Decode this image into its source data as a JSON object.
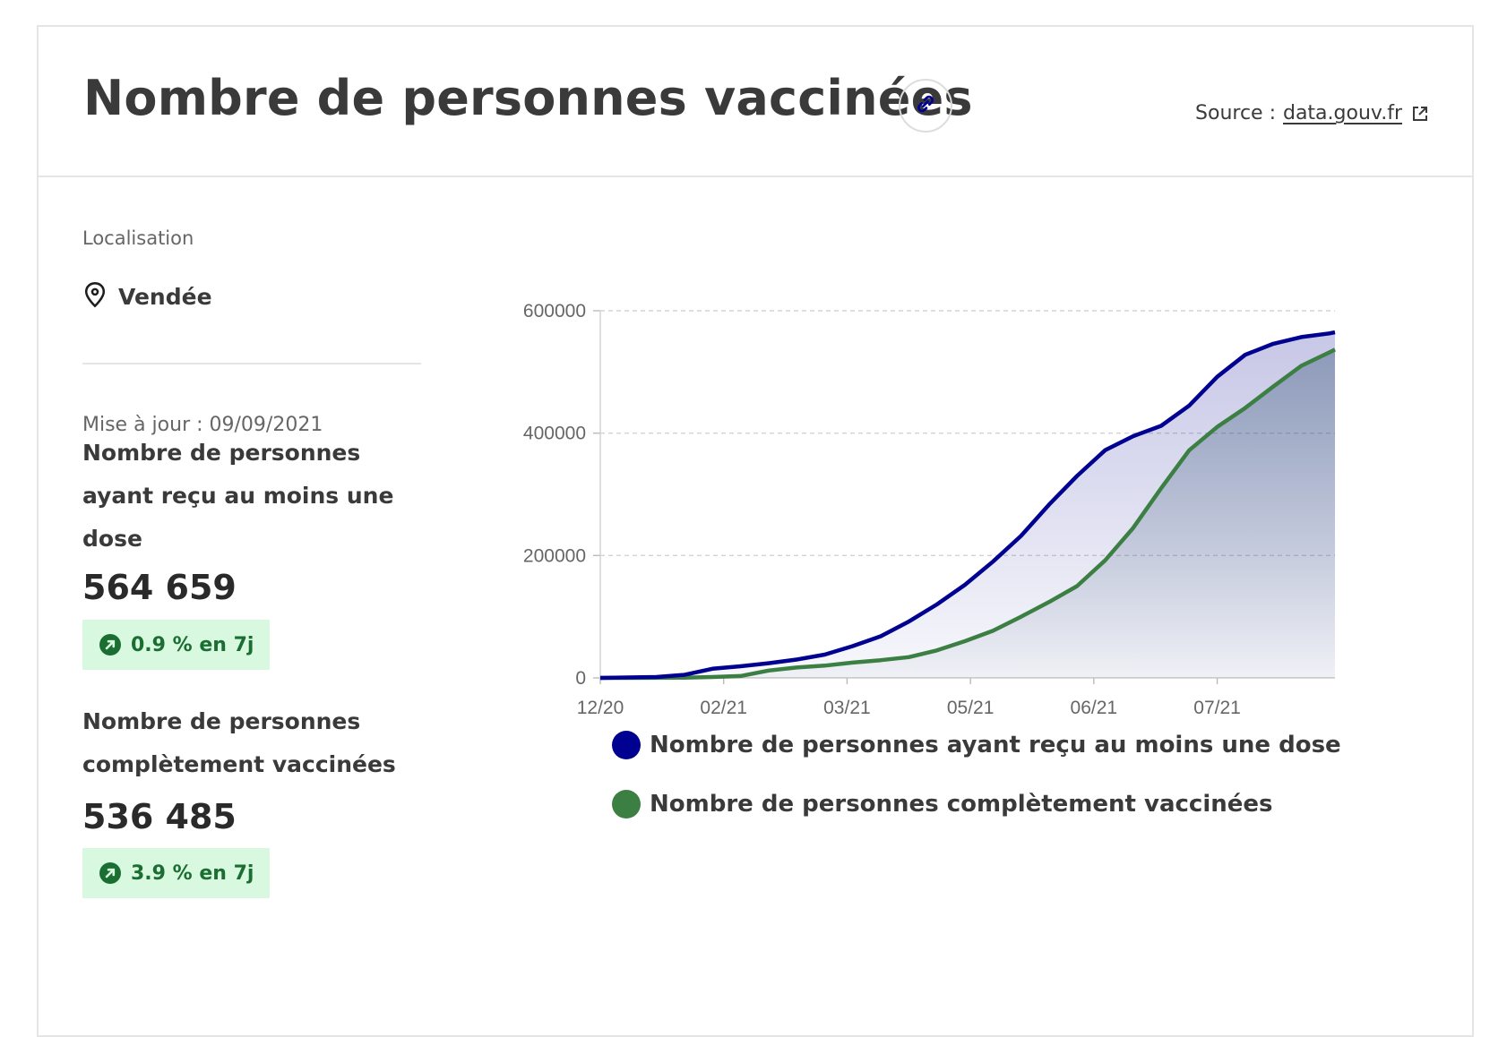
{
  "header": {
    "title": "Nombre de personnes vaccinées",
    "source_prefix": "Source :",
    "source_link": "data.gouv.fr"
  },
  "location": {
    "label": "Localisation",
    "name": "Vendée"
  },
  "update": "Mise à jour : 09/09/2021",
  "stats": [
    {
      "label": "Nombre de personnes ayant reçu au moins une dose",
      "value": "564 659",
      "badge": "0.9 % en 7j"
    },
    {
      "label": "Nombre de personnes complètement vaccinées",
      "value": "536 485",
      "badge": "3.9 % en 7j"
    }
  ],
  "colors": {
    "series1": "#000091",
    "series2": "#3b7f43",
    "badge_bg": "#d9f8e0",
    "badge_fg": "#1b6e32"
  },
  "chart_data": {
    "type": "area",
    "x_ticks": [
      "12/20",
      "02/21",
      "03/21",
      "05/21",
      "06/21",
      "07/21"
    ],
    "y_ticks": [
      0,
      200000,
      400000,
      600000
    ],
    "ylim": [
      0,
      600000
    ],
    "grid": true,
    "legend_position": "bottom",
    "x_days": [
      0,
      10,
      20,
      30,
      40,
      50,
      60,
      70,
      80,
      90,
      100,
      110,
      120,
      130,
      140,
      150,
      160,
      170,
      180,
      190,
      200,
      210,
      220,
      230,
      240,
      250,
      260,
      262
    ],
    "series": [
      {
        "name": "Nombre de personnes ayant reçu au moins une dose",
        "values": [
          0,
          800,
          1500,
          5000,
          15000,
          19000,
          24000,
          30000,
          38000,
          52000,
          68000,
          92000,
          120000,
          152000,
          190000,
          232000,
          283000,
          330000,
          372000,
          395000,
          412000,
          445000,
          492000,
          528000,
          546000,
          557000,
          563000,
          564659
        ]
      },
      {
        "name": "Nombre de personnes complètement vaccinées",
        "values": [
          0,
          0,
          200,
          500,
          1500,
          3000,
          12000,
          17000,
          20000,
          25000,
          29000,
          34000,
          45000,
          60000,
          77000,
          100000,
          124000,
          150000,
          192000,
          245000,
          310000,
          372000,
          410000,
          441000,
          476000,
          510000,
          532000,
          536485
        ]
      }
    ]
  }
}
